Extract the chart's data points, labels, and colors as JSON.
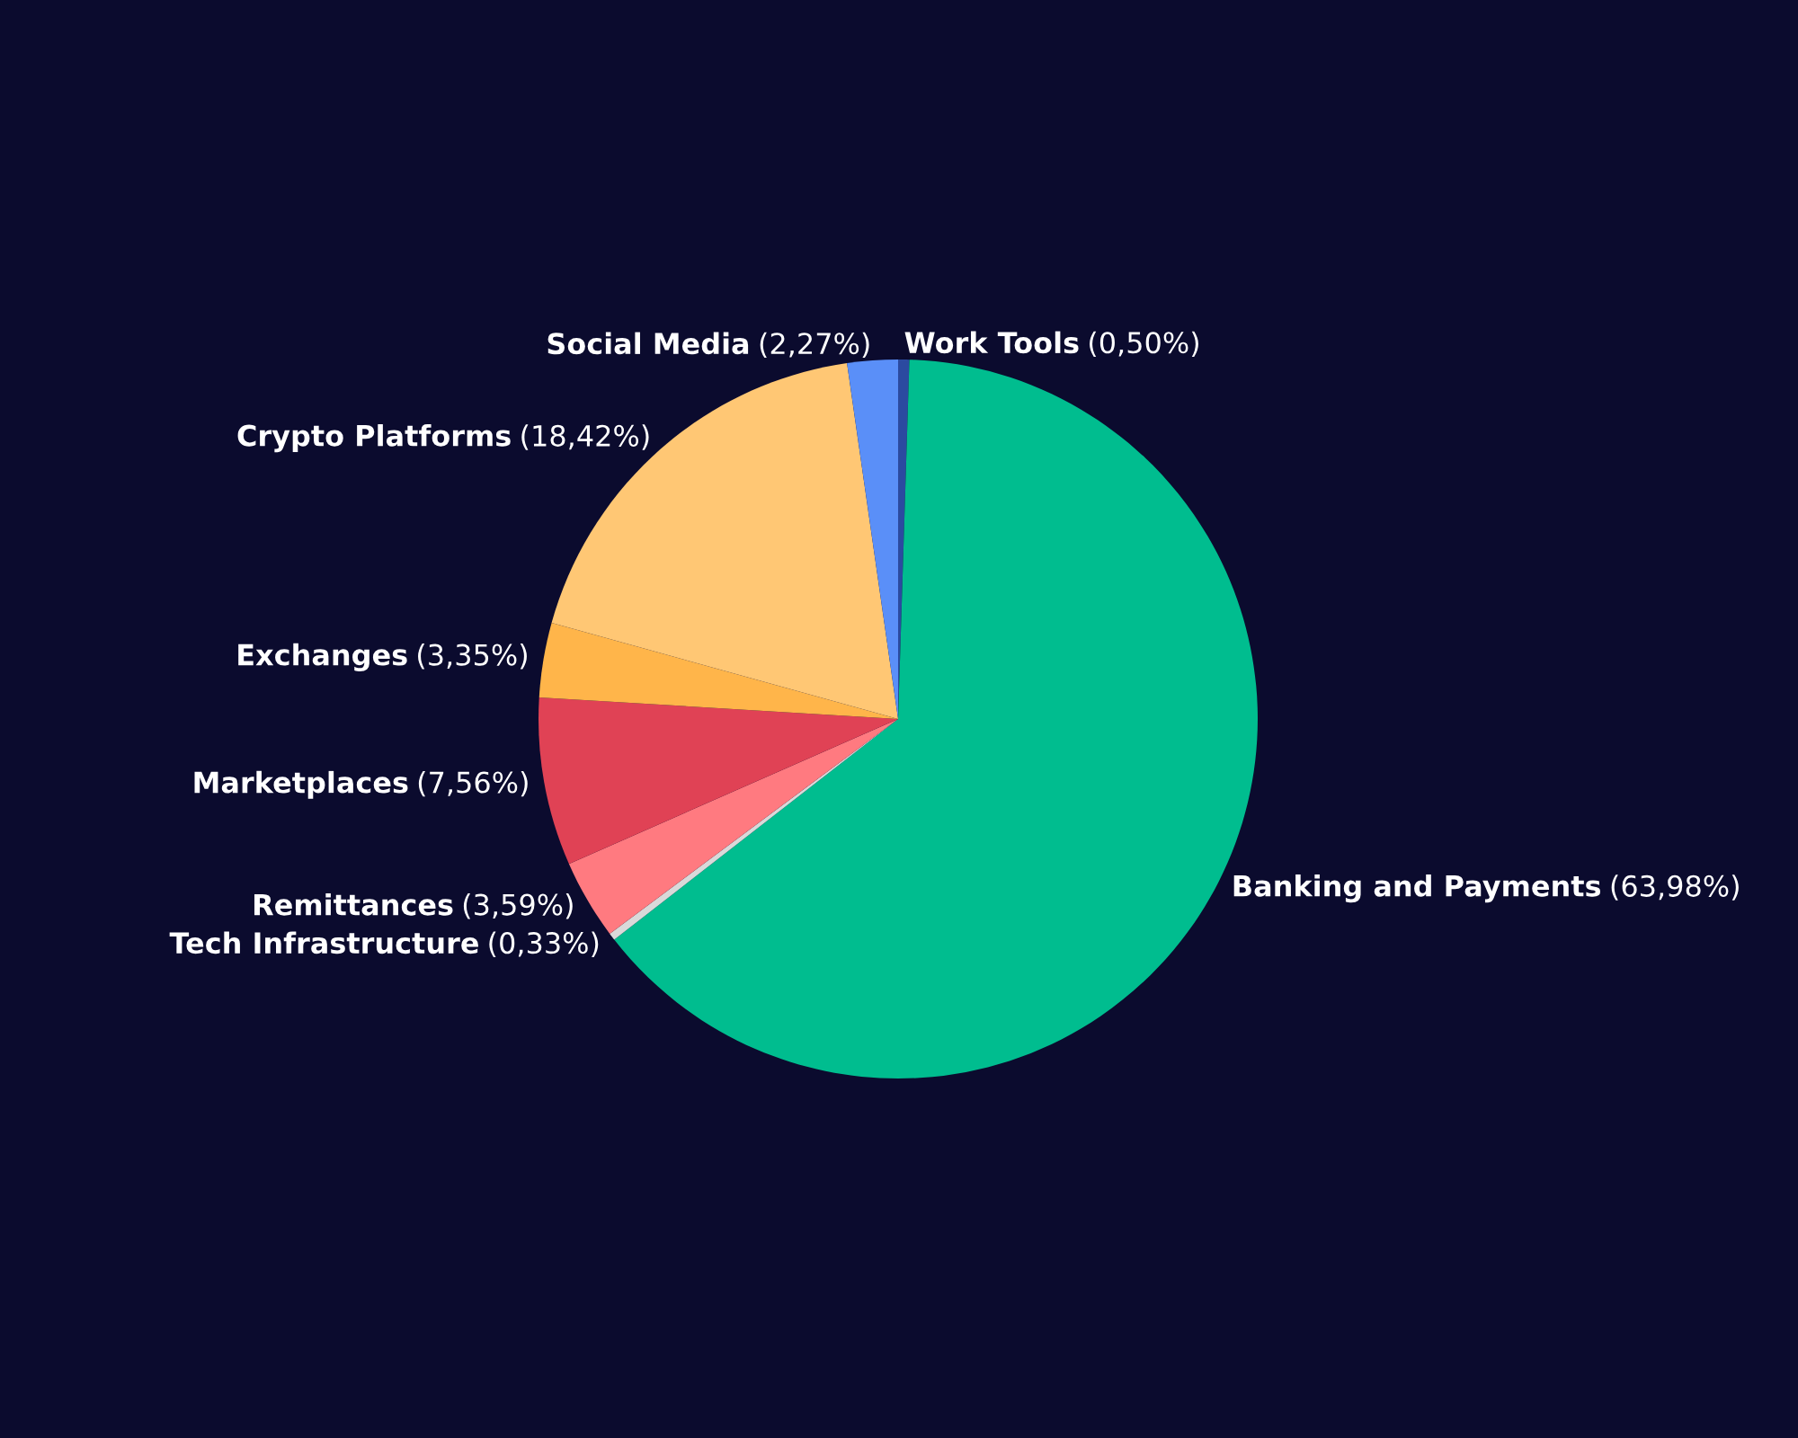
{
  "chart_data": {
    "type": "pie",
    "categories": [
      "Work Tools",
      "Banking and Payments",
      "Tech Infrastructure",
      "Remittances",
      "Marketplaces",
      "Exchanges",
      "Crypto Platforms",
      "Social Media"
    ],
    "values": [
      0.5,
      63.98,
      0.33,
      3.59,
      7.56,
      3.35,
      18.42,
      2.27
    ],
    "value_labels": [
      "(0,50%)",
      "(63,98%)",
      "(0,33%)",
      "(3,59%)",
      "(7,56%)",
      "(3,35%)",
      "(18,42%)",
      "(2,27%)"
    ],
    "colors": [
      "#2b4aa0",
      "#00bd8f",
      "#d9d9d9",
      "#ff7a80",
      "#e04255",
      "#ffb54a",
      "#ffc774",
      "#5a8ff8"
    ],
    "legend": false
  }
}
